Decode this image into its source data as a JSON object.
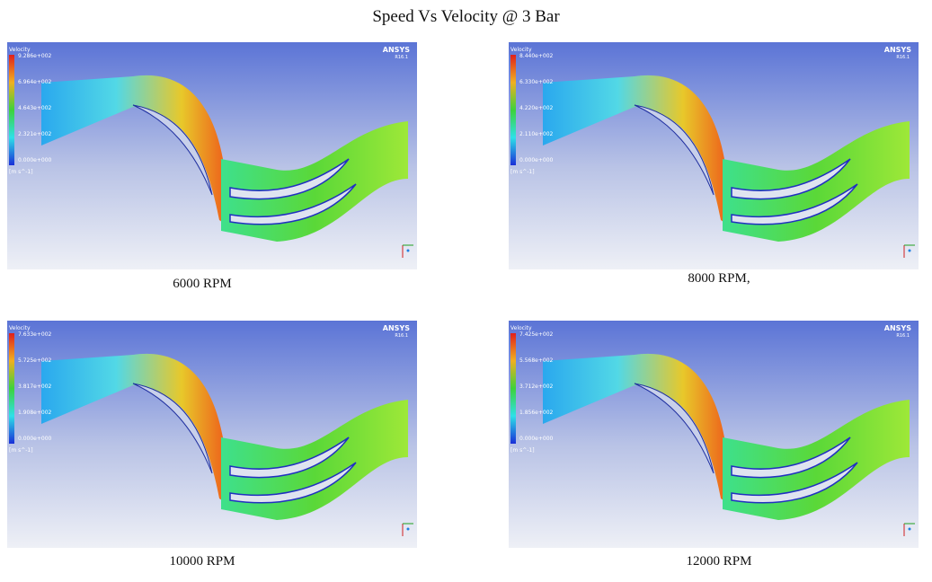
{
  "title": "Speed Vs Velocity @ 3 Bar",
  "panels": [
    {
      "caption": "6000 RPM",
      "legend": {
        "title": "Velocity",
        "labels": [
          "9.286e+002",
          "6.964e+002",
          "4.643e+002",
          "2.321e+002",
          "0.000e+000"
        ],
        "unit": "[m s^-1]"
      },
      "logo": "ANSYS",
      "version": "R16.1"
    },
    {
      "caption": "8000 RPM,",
      "legend": {
        "title": "Velocity",
        "labels": [
          "8.440e+002",
          "6.330e+002",
          "4.220e+002",
          "2.110e+002",
          "0.000e+000"
        ],
        "unit": "[m s^-1]"
      },
      "logo": "ANSYS",
      "version": "R16.1"
    },
    {
      "caption": "10000 RPM",
      "legend": {
        "title": "Velocity",
        "labels": [
          "7.633e+002",
          "5.725e+002",
          "3.817e+002",
          "1.908e+002",
          "0.000e+000"
        ],
        "unit": "[m s^-1]"
      },
      "logo": "ANSYS",
      "version": "R16.1"
    },
    {
      "caption": "12000 RPM",
      "legend": {
        "title": "Velocity",
        "labels": [
          "7.425e+002",
          "5.568e+002",
          "3.712e+002",
          "1.856e+002",
          "0.000e+000"
        ],
        "unit": "[m s^-1]"
      },
      "logo": "ANSYS",
      "version": "R16.1"
    }
  ]
}
